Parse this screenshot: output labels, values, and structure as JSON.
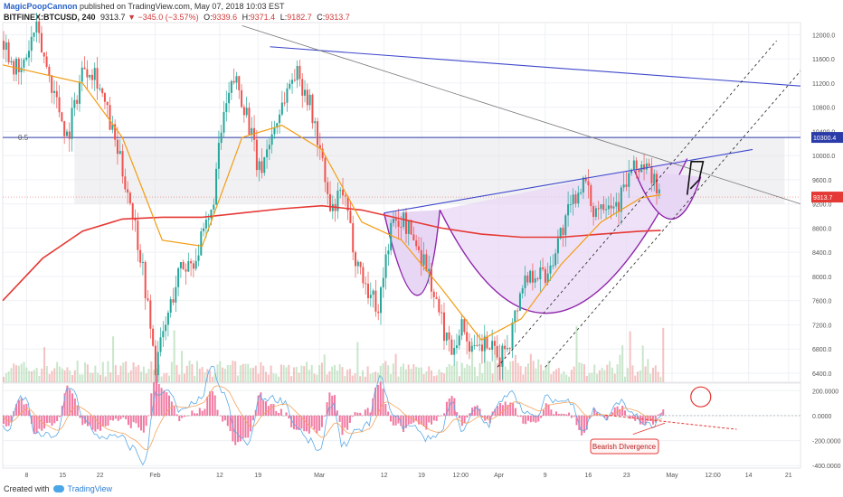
{
  "header": {
    "author": "MagicPoopCannon",
    "published_text": "published on TradingView.com, May 07, 2018 10:03 EST",
    "symbol": "BITFINEX:BTCUSD, 240",
    "last": "9313.7",
    "change": "−345.0 (−3.57%)",
    "open_label": "O:",
    "open": "9339.6",
    "high_label": "H:",
    "high": "9371.4",
    "low_label": "L:",
    "low": "9182.7",
    "close_label": "C:",
    "close": "9313.7"
  },
  "footer": {
    "created_with": "Created with",
    "brand": "TradingView"
  },
  "colors": {
    "ma_red": "#e53935",
    "ma_orange": "#f39c12",
    "trend_blue": "#3f48cc",
    "cup_purple": "#8e24aa",
    "histogram": "#f06292",
    "grid": "#eef0f4"
  },
  "chart_data": [
    {
      "type": "line",
      "panel": "price",
      "y_ticks": [
        6400,
        6800,
        7200,
        7600,
        8000,
        8400,
        8800,
        9200,
        9600,
        10000,
        10400,
        10800,
        11200,
        11600,
        12000
      ],
      "ylim": [
        6250,
        12200
      ],
      "x_ticks": [
        "8",
        "15",
        "22",
        "Feb",
        "12",
        "19",
        "Mar",
        "12",
        "19",
        "12:00",
        "Apr",
        "9",
        "16",
        "23",
        "May",
        "12:00",
        "14",
        "21"
      ],
      "fib_label": "0.5",
      "fib_level": 10300.4,
      "current_price": 9313.7,
      "price_series": [
        {
          "x": 0.0,
          "y": 11900
        },
        {
          "x": 0.02,
          "y": 11300
        },
        {
          "x": 0.04,
          "y": 12100
        },
        {
          "x": 0.06,
          "y": 11200
        },
        {
          "x": 0.08,
          "y": 10300
        },
        {
          "x": 0.1,
          "y": 11500
        },
        {
          "x": 0.115,
          "y": 11400
        },
        {
          "x": 0.14,
          "y": 10200
        },
        {
          "x": 0.16,
          "y": 9200
        },
        {
          "x": 0.175,
          "y": 8100
        },
        {
          "x": 0.19,
          "y": 6500
        },
        {
          "x": 0.205,
          "y": 7300
        },
        {
          "x": 0.22,
          "y": 8100
        },
        {
          "x": 0.24,
          "y": 8300
        },
        {
          "x": 0.26,
          "y": 9000
        },
        {
          "x": 0.275,
          "y": 10600
        },
        {
          "x": 0.29,
          "y": 11300
        },
        {
          "x": 0.305,
          "y": 10700
        },
        {
          "x": 0.32,
          "y": 9700
        },
        {
          "x": 0.335,
          "y": 10300
        },
        {
          "x": 0.35,
          "y": 10900
        },
        {
          "x": 0.365,
          "y": 11400
        },
        {
          "x": 0.38,
          "y": 11050
        },
        {
          "x": 0.395,
          "y": 10200
        },
        {
          "x": 0.41,
          "y": 9000
        },
        {
          "x": 0.425,
          "y": 9400
        },
        {
          "x": 0.44,
          "y": 8400
        },
        {
          "x": 0.455,
          "y": 7800
        },
        {
          "x": 0.47,
          "y": 7500
        },
        {
          "x": 0.485,
          "y": 8800
        },
        {
          "x": 0.5,
          "y": 8950
        },
        {
          "x": 0.515,
          "y": 8600
        },
        {
          "x": 0.53,
          "y": 8200
        },
        {
          "x": 0.545,
          "y": 7400
        },
        {
          "x": 0.56,
          "y": 6800
        },
        {
          "x": 0.575,
          "y": 7200
        },
        {
          "x": 0.59,
          "y": 6700
        },
        {
          "x": 0.605,
          "y": 6900
        },
        {
          "x": 0.62,
          "y": 6600
        },
        {
          "x": 0.635,
          "y": 7000
        },
        {
          "x": 0.65,
          "y": 7900
        },
        {
          "x": 0.665,
          "y": 8100
        },
        {
          "x": 0.68,
          "y": 8000
        },
        {
          "x": 0.695,
          "y": 8600
        },
        {
          "x": 0.71,
          "y": 9100
        },
        {
          "x": 0.725,
          "y": 9600
        },
        {
          "x": 0.74,
          "y": 9100
        },
        {
          "x": 0.755,
          "y": 9300
        },
        {
          "x": 0.77,
          "y": 9200
        },
        {
          "x": 0.785,
          "y": 9700
        },
        {
          "x": 0.8,
          "y": 9850
        },
        {
          "x": 0.815,
          "y": 9600
        },
        {
          "x": 0.825,
          "y": 9314
        }
      ],
      "ma_orange": [
        {
          "x": 0.0,
          "y": 11500
        },
        {
          "x": 0.1,
          "y": 11200
        },
        {
          "x": 0.15,
          "y": 10300
        },
        {
          "x": 0.2,
          "y": 8600
        },
        {
          "x": 0.25,
          "y": 8500
        },
        {
          "x": 0.3,
          "y": 10300
        },
        {
          "x": 0.35,
          "y": 10500
        },
        {
          "x": 0.4,
          "y": 10100
        },
        {
          "x": 0.45,
          "y": 8900
        },
        {
          "x": 0.5,
          "y": 8600
        },
        {
          "x": 0.55,
          "y": 7800
        },
        {
          "x": 0.6,
          "y": 6950
        },
        {
          "x": 0.65,
          "y": 7300
        },
        {
          "x": 0.7,
          "y": 8200
        },
        {
          "x": 0.75,
          "y": 8900
        },
        {
          "x": 0.8,
          "y": 9300
        },
        {
          "x": 0.825,
          "y": 9350
        }
      ],
      "ma_red": [
        {
          "x": 0.0,
          "y": 7600
        },
        {
          "x": 0.05,
          "y": 8300
        },
        {
          "x": 0.1,
          "y": 8750
        },
        {
          "x": 0.15,
          "y": 8950
        },
        {
          "x": 0.2,
          "y": 8980
        },
        {
          "x": 0.25,
          "y": 8980
        },
        {
          "x": 0.3,
          "y": 9050
        },
        {
          "x": 0.35,
          "y": 9120
        },
        {
          "x": 0.4,
          "y": 9170
        },
        {
          "x": 0.45,
          "y": 9100
        },
        {
          "x": 0.5,
          "y": 8950
        },
        {
          "x": 0.55,
          "y": 8800
        },
        {
          "x": 0.6,
          "y": 8700
        },
        {
          "x": 0.65,
          "y": 8650
        },
        {
          "x": 0.7,
          "y": 8650
        },
        {
          "x": 0.75,
          "y": 8700
        },
        {
          "x": 0.8,
          "y": 8750
        },
        {
          "x": 0.825,
          "y": 8760
        }
      ]
    },
    {
      "type": "bar",
      "panel": "oscillator",
      "y_ticks": [
        "200.0000",
        "0.0000",
        "-200.0000",
        "-400.0000"
      ],
      "ylim": [
        -420,
        260
      ],
      "annotation": "Bearish DIvergence"
    }
  ]
}
